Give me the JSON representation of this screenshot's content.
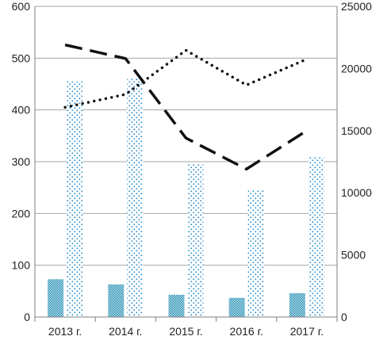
{
  "chart_data": {
    "type": "bar+line",
    "categories": [
      "2013 г.",
      "2014 г.",
      "2015 г.",
      "2016 г.",
      "2017 г."
    ],
    "left_axis": {
      "min": 0,
      "max": 600,
      "ticks": [
        0,
        100,
        200,
        300,
        400,
        500,
        600
      ]
    },
    "right_axis": {
      "min": 0,
      "max": 25000,
      "ticks": [
        0,
        5000,
        10000,
        15000,
        20000,
        25000
      ]
    },
    "grid": "horizontal",
    "legend": "none",
    "series": [
      {
        "kind": "bar",
        "axis": "left",
        "style": "dense-checker",
        "color": "#2a8fb0",
        "values": [
          73,
          63,
          43,
          37,
          46
        ]
      },
      {
        "kind": "bar",
        "axis": "left",
        "style": "sparse-dots",
        "color": "#1f88c8",
        "values": [
          455,
          460,
          295,
          245,
          310
        ]
      },
      {
        "kind": "line",
        "axis": "right",
        "style": "long-dash",
        "color": "#111111",
        "values": [
          21900,
          20800,
          14400,
          11900,
          15000
        ]
      },
      {
        "kind": "line",
        "axis": "left",
        "style": "dotted",
        "color": "#111111",
        "values": [
          405,
          430,
          515,
          448,
          498
        ]
      }
    ]
  }
}
